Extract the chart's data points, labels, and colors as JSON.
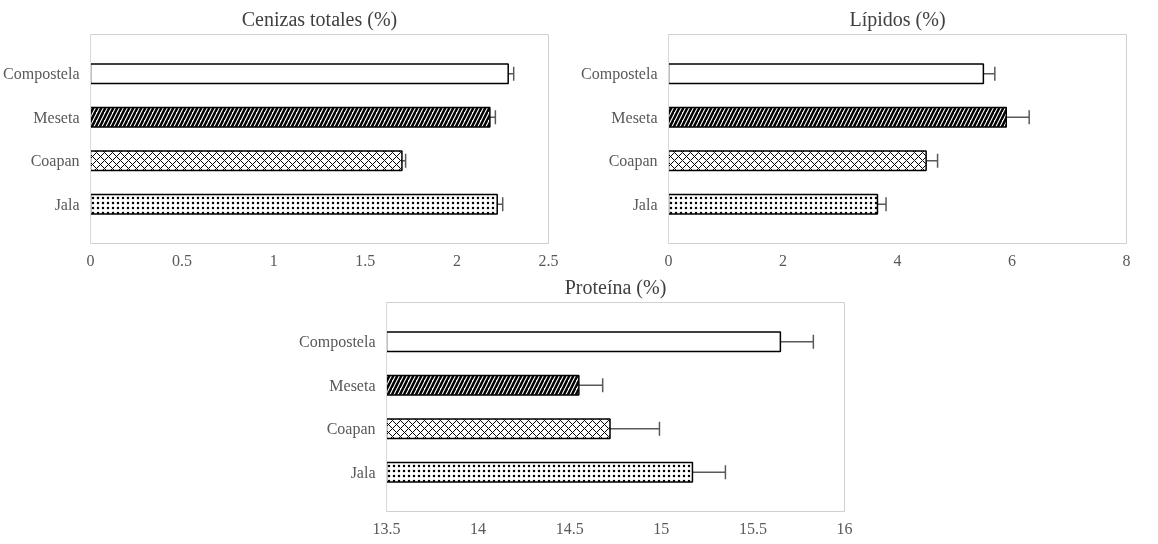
{
  "chart_data": [
    {
      "type": "bar",
      "orientation": "horizontal",
      "title": "Cenizas totales (%)",
      "categories": [
        "Compostela",
        "Meseta",
        "Coapan",
        "Jala"
      ],
      "values": [
        2.28,
        2.18,
        1.7,
        2.22
      ],
      "errors": [
        0.03,
        0.03,
        0.02,
        0.03
      ],
      "color": "#000000",
      "xlim": [
        0,
        2.5
      ],
      "xticks": [
        0,
        {
          "value": 0.5,
          "label": "0.5"
        },
        1,
        {
          "value": 1.5,
          "label": "1.5"
        },
        2,
        {
          "value": 2.5,
          "label": "2.5"
        }
      ],
      "grid": false
    },
    {
      "type": "bar",
      "orientation": "horizontal",
      "title": "Lípidos (%)",
      "categories": [
        "Compostela",
        "Meseta",
        "Coapan",
        "Jala"
      ],
      "values": [
        5.5,
        5.9,
        4.5,
        3.65
      ],
      "errors": [
        0.2,
        0.4,
        0.2,
        0.15
      ],
      "color": "#000000",
      "xlim": [
        0,
        8
      ],
      "xticks": [
        0,
        2,
        4,
        6,
        8
      ],
      "grid": false
    },
    {
      "type": "bar",
      "orientation": "horizontal",
      "title": "Proteína (%)",
      "categories": [
        "Compostela",
        "Meseta",
        "Coapan",
        "Jala"
      ],
      "values": [
        15.65,
        14.55,
        14.72,
        15.17
      ],
      "errors": [
        0.18,
        0.13,
        0.27,
        0.18
      ],
      "color": "#000000",
      "xlim": [
        13.5,
        16
      ],
      "xticks": [
        {
          "value": 13.5,
          "label": "13.5"
        },
        14,
        {
          "value": 14.5,
          "label": "14.5"
        },
        15,
        {
          "value": 15.5,
          "label": "15.5"
        },
        16
      ],
      "grid": false
    }
  ]
}
